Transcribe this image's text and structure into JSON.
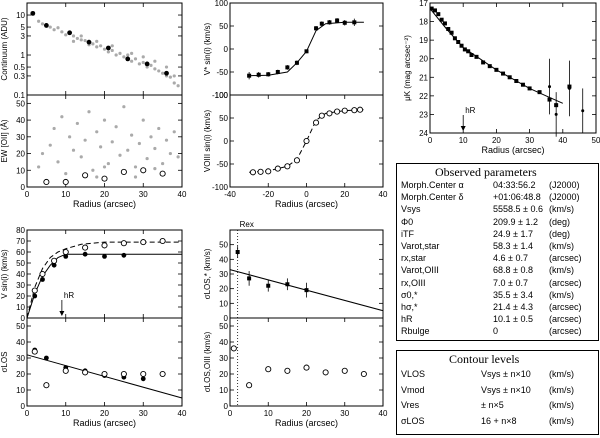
{
  "chart_data": [
    {
      "id": "continuum",
      "type": "scatter",
      "ylabel": "Continuum (ADU)",
      "yscale": "log",
      "xlim": [
        0,
        40
      ],
      "ylim": [
        0.1,
        20
      ],
      "xticks": [
        0,
        10,
        20,
        30,
        40
      ],
      "yticks": [
        {
          "v": 0.1,
          "label": "0.1"
        },
        {
          "v": 0.3,
          "label": "0.3"
        },
        {
          "v": 0.5,
          "label": "0.5"
        },
        {
          "v": 1,
          "label": "1"
        },
        {
          "v": 3,
          "label": "3"
        },
        {
          "v": 5,
          "label": "5"
        },
        {
          "v": 10,
          "label": "10"
        }
      ],
      "points_black": [
        [
          1.5,
          11
        ],
        [
          5,
          5.5
        ],
        [
          11,
          3.6
        ],
        [
          16,
          2.1
        ],
        [
          21,
          1.5
        ],
        [
          26,
          0.8
        ],
        [
          31,
          0.6
        ],
        [
          36,
          0.35
        ]
      ],
      "scatter_grey": [
        [
          3,
          7
        ],
        [
          4,
          6
        ],
        [
          6,
          5
        ],
        [
          7,
          4.3
        ],
        [
          8,
          4.8
        ],
        [
          9,
          3.8
        ],
        [
          10,
          3.2
        ],
        [
          12,
          3
        ],
        [
          13,
          2.6
        ],
        [
          14,
          2.4
        ],
        [
          15,
          2.3
        ],
        [
          16,
          1.8
        ],
        [
          17,
          1.9
        ],
        [
          18,
          1.6
        ],
        [
          19,
          1.7
        ],
        [
          20,
          1.4
        ],
        [
          21,
          1.2
        ],
        [
          22,
          1.3
        ],
        [
          23,
          1.0
        ],
        [
          24,
          1.1
        ],
        [
          25,
          0.9
        ],
        [
          26,
          1.0
        ],
        [
          27,
          0.7
        ],
        [
          28,
          0.8
        ],
        [
          29,
          0.6
        ],
        [
          30,
          0.65
        ],
        [
          31,
          0.5
        ],
        [
          32,
          0.55
        ],
        [
          33,
          0.45
        ],
        [
          34,
          0.4
        ],
        [
          35,
          0.35
        ],
        [
          36,
          0.3
        ],
        [
          37,
          0.28
        ],
        [
          38,
          0.2
        ],
        [
          39,
          0.17
        ],
        [
          12,
          2.2
        ],
        [
          14,
          3
        ],
        [
          18,
          2.2
        ],
        [
          22,
          1.7
        ],
        [
          27,
          1.1
        ],
        [
          30,
          0.9
        ],
        [
          33,
          0.7
        ],
        [
          36,
          0.5
        ],
        [
          38,
          0.3
        ]
      ]
    },
    {
      "id": "ew",
      "type": "scatter",
      "xlabel": "Radius (arcsec)",
      "ylabel": "EW [OII] (Å)",
      "xlim": [
        0,
        40
      ],
      "ylim": [
        0,
        55
      ],
      "xticks": [
        0,
        10,
        20,
        30,
        40
      ],
      "yticks": [
        0,
        10,
        20,
        30,
        40,
        50
      ],
      "points_open": [
        [
          5,
          3
        ],
        [
          10,
          3
        ],
        [
          15,
          7
        ],
        [
          20,
          5
        ],
        [
          25,
          9
        ],
        [
          30,
          10
        ],
        [
          35,
          8
        ]
      ],
      "scatter_grey": [
        [
          3,
          12
        ],
        [
          4,
          20
        ],
        [
          6,
          25
        ],
        [
          7,
          35
        ],
        [
          8,
          15
        ],
        [
          9,
          42
        ],
        [
          11,
          30
        ],
        [
          12,
          22
        ],
        [
          13,
          38
        ],
        [
          14,
          18
        ],
        [
          15,
          28
        ],
        [
          16,
          45
        ],
        [
          17,
          10
        ],
        [
          18,
          33
        ],
        [
          19,
          24
        ],
        [
          20,
          40
        ],
        [
          21,
          14
        ],
        [
          22,
          27
        ],
        [
          23,
          36
        ],
        [
          24,
          19
        ],
        [
          25,
          48
        ],
        [
          26,
          22
        ],
        [
          27,
          31
        ],
        [
          28,
          12
        ],
        [
          29,
          26
        ],
        [
          30,
          40
        ],
        [
          31,
          17
        ],
        [
          32,
          30
        ],
        [
          33,
          23
        ],
        [
          34,
          35
        ],
        [
          35,
          14
        ],
        [
          36,
          28
        ],
        [
          37,
          20
        ],
        [
          38,
          33
        ],
        [
          39,
          18
        ],
        [
          10,
          8
        ],
        [
          20,
          12
        ],
        [
          28,
          6
        ],
        [
          33,
          11
        ],
        [
          18,
          6
        ]
      ]
    },
    {
      "id": "vstar",
      "type": "scatter",
      "ylabel": "V* sin(i) (km/s)",
      "xlim": [
        -40,
        40
      ],
      "ylim": [
        -100,
        100
      ],
      "yticks": [
        -100,
        -50,
        0,
        50,
        100
      ],
      "model_line": [
        [
          -30,
          -58
        ],
        [
          -20,
          -57
        ],
        [
          -10,
          -50
        ],
        [
          -5,
          -30
        ],
        [
          0,
          -5
        ],
        [
          5,
          40
        ],
        [
          10,
          55
        ],
        [
          20,
          58
        ],
        [
          30,
          58
        ]
      ],
      "points": [
        [
          -30,
          -58,
          8
        ],
        [
          -25,
          -56,
          6
        ],
        [
          -20,
          -55,
          5
        ],
        [
          -15,
          -50,
          5
        ],
        [
          -10,
          -40,
          5
        ],
        [
          -5,
          -30,
          5
        ],
        [
          0,
          -5,
          4
        ],
        [
          5,
          45,
          5
        ],
        [
          8,
          55,
          5
        ],
        [
          12,
          58,
          5
        ],
        [
          16,
          62,
          5
        ],
        [
          20,
          57,
          6
        ],
        [
          25,
          58,
          8
        ]
      ]
    },
    {
      "id": "voiii",
      "type": "scatter",
      "xlabel": "Radius (arcsec)",
      "ylabel": "VOIII sin(i) (km/s)",
      "xlim": [
        -40,
        40
      ],
      "ylim": [
        -100,
        100
      ],
      "xticks": [
        -40,
        -20,
        0,
        20,
        40
      ],
      "yticks": [
        -100,
        -50,
        0,
        50,
        100
      ],
      "model_line": [
        [
          -30,
          -68
        ],
        [
          -20,
          -65
        ],
        [
          -10,
          -55
        ],
        [
          -5,
          -40
        ],
        [
          0,
          0
        ],
        [
          5,
          45
        ],
        [
          10,
          60
        ],
        [
          20,
          66
        ],
        [
          30,
          68
        ]
      ],
      "points_open": [
        [
          -28,
          -68
        ],
        [
          -24,
          -67
        ],
        [
          -20,
          -66
        ],
        [
          -15,
          -60
        ],
        [
          -10,
          -55
        ],
        [
          -5,
          -42
        ],
        [
          0,
          0
        ],
        [
          5,
          40
        ],
        [
          8,
          55
        ],
        [
          12,
          60
        ],
        [
          16,
          64
        ],
        [
          20,
          66
        ],
        [
          25,
          67
        ],
        [
          28,
          68
        ]
      ]
    },
    {
      "id": "mu",
      "type": "line",
      "xlabel": "Radius (arcsec)",
      "ylabel": "μK (mag arcsec⁻²)",
      "xlim": [
        0,
        50
      ],
      "ylim": [
        24,
        17
      ],
      "xticks": [
        0,
        10,
        20,
        30,
        40,
        50
      ],
      "yticks": [
        17,
        18,
        19,
        20,
        21,
        22,
        23,
        24
      ],
      "annotation": "hR",
      "annotation_x": 10,
      "model_line": [
        [
          0,
          17.3
        ],
        [
          5,
          18.4
        ],
        [
          10,
          19.4
        ],
        [
          15,
          20.0
        ],
        [
          20,
          20.6
        ],
        [
          25,
          21.1
        ],
        [
          30,
          21.6
        ],
        [
          35,
          22.0
        ],
        [
          40,
          22.4
        ]
      ],
      "points": [
        [
          0.5,
          17.3
        ],
        [
          1.5,
          17.4
        ],
        [
          2.5,
          17.6
        ],
        [
          3.5,
          17.9
        ],
        [
          4.5,
          18.1
        ],
        [
          5.5,
          18.4
        ],
        [
          6.5,
          18.6
        ],
        [
          7.5,
          18.9
        ],
        [
          8.5,
          19.1
        ],
        [
          9.5,
          19.3
        ],
        [
          10.5,
          19.5
        ],
        [
          11.5,
          19.6
        ],
        [
          12.5,
          19.8
        ],
        [
          14,
          19.9
        ],
        [
          16,
          20.2
        ],
        [
          18,
          20.4
        ],
        [
          20,
          20.6
        ],
        [
          22,
          20.8
        ],
        [
          24,
          21.0
        ],
        [
          26,
          21.2
        ],
        [
          28,
          21.4
        ],
        [
          30,
          21.6
        ],
        [
          33,
          21.8
        ],
        [
          36,
          22.2
        ],
        [
          38,
          22.5
        ],
        [
          42,
          21.5
        ]
      ],
      "err_points": [
        [
          36,
          21.5,
          1.5
        ],
        [
          38,
          23,
          1.2
        ],
        [
          42,
          21.6,
          1.5
        ],
        [
          46,
          22.8,
          1.2
        ]
      ]
    },
    {
      "id": "vrot",
      "type": "scatter",
      "ylabel": "V sin(i) (km/s)",
      "xlim": [
        0,
        40
      ],
      "ylim": [
        0,
        80
      ],
      "xticks": [
        0,
        10,
        20,
        30,
        40
      ],
      "yticks": [
        0,
        10,
        20,
        30,
        40,
        50,
        60,
        70,
        80
      ],
      "annotation": "hR",
      "annotation_x": 9,
      "model_solid": [
        [
          0,
          0
        ],
        [
          2,
          22
        ],
        [
          4,
          38
        ],
        [
          6,
          48
        ],
        [
          8,
          55
        ],
        [
          10,
          58
        ],
        [
          40,
          58
        ]
      ],
      "model_dashed": [
        [
          0,
          0
        ],
        [
          2,
          28
        ],
        [
          4,
          45
        ],
        [
          6,
          55
        ],
        [
          8,
          60
        ],
        [
          10,
          63
        ],
        [
          14,
          67
        ],
        [
          20,
          69
        ],
        [
          40,
          69
        ]
      ],
      "points_black": [
        [
          2,
          20
        ],
        [
          4,
          35
        ],
        [
          7,
          48
        ],
        [
          10,
          56
        ],
        [
          15,
          58
        ],
        [
          20,
          56
        ],
        [
          25,
          57
        ]
      ],
      "points_open": [
        [
          2,
          25
        ],
        [
          4,
          40
        ],
        [
          7,
          52
        ],
        [
          10,
          60
        ],
        [
          15,
          64
        ],
        [
          20,
          66
        ],
        [
          25,
          68
        ],
        [
          30,
          69
        ],
        [
          35,
          70
        ]
      ]
    },
    {
      "id": "sigma",
      "type": "scatter",
      "xlabel": "Radius (arcsec)",
      "ylabel": "σLOS",
      "xlim": [
        0,
        40
      ],
      "ylim": [
        0,
        55
      ],
      "xticks": [
        0,
        10,
        20,
        30,
        40
      ],
      "yticks": [
        0,
        10,
        20,
        30,
        40,
        50
      ],
      "model_line": [
        [
          0,
          32
        ],
        [
          40,
          5
        ]
      ],
      "points_black": [
        [
          2,
          35
        ],
        [
          5,
          30
        ],
        [
          10,
          24
        ],
        [
          15,
          22
        ],
        [
          20,
          19
        ],
        [
          25,
          18
        ],
        [
          30,
          17
        ]
      ],
      "points_open": [
        [
          2,
          34
        ],
        [
          5,
          13
        ],
        [
          10,
          22
        ],
        [
          15,
          21
        ],
        [
          20,
          20
        ],
        [
          25,
          20
        ],
        [
          30,
          20
        ],
        [
          35,
          20
        ]
      ]
    },
    {
      "id": "sigma_star",
      "type": "scatter",
      "ylabel": "σLOS,* (km/s)",
      "annotation": "Rex",
      "xlim": [
        0,
        40
      ],
      "ylim": [
        0,
        60
      ],
      "yticks": [
        0,
        10,
        20,
        30,
        40,
        50
      ],
      "model_line": [
        [
          0,
          33
        ],
        [
          40,
          5
        ]
      ],
      "points": [
        [
          2,
          45,
          4
        ],
        [
          5,
          27,
          5
        ],
        [
          10,
          22,
          4
        ],
        [
          15,
          23,
          4
        ],
        [
          20,
          19,
          5
        ]
      ]
    },
    {
      "id": "sigma_oiii",
      "type": "scatter",
      "xlabel": "Radius (arcsec)",
      "ylabel": "σLOS,OIII (km/s)",
      "xlim": [
        0,
        40
      ],
      "ylim": [
        0,
        55
      ],
      "xticks": [
        0,
        10,
        20,
        30,
        40
      ],
      "yticks": [
        0,
        10,
        20,
        30,
        40,
        50
      ],
      "points_open": [
        [
          1,
          36
        ],
        [
          5,
          13
        ],
        [
          10,
          23
        ],
        [
          15,
          22
        ],
        [
          20,
          24
        ],
        [
          25,
          21
        ],
        [
          30,
          22
        ],
        [
          35,
          20
        ]
      ]
    }
  ],
  "tables": {
    "observed": {
      "title": "Observed parameters",
      "rows": [
        {
          "name": "Morph.Center α",
          "value": "04:33:56.2",
          "unit": "(J2000)"
        },
        {
          "name": "Morph.Center δ",
          "value": "+01:06:48.8",
          "unit": "(J2000)"
        },
        {
          "name": "Vsys",
          "value": "5558.5 ± 0.6",
          "unit": "(km/s)"
        },
        {
          "name": "Φ0",
          "value": "209.9 ± 1.2",
          "unit": "(deg)"
        },
        {
          "name": "iTF",
          "value": "24.9 ± 1.7",
          "unit": "(deg)"
        },
        {
          "name": "Varot,star",
          "value": "58.3 ± 1.4",
          "unit": "(km/s)"
        },
        {
          "name": "rx,star",
          "value": "4.6 ± 0.7",
          "unit": "(arcsec)"
        },
        {
          "name": "Varot,OIII",
          "value": "68.8 ± 0.8",
          "unit": "(km/s)"
        },
        {
          "name": "rx,OIII",
          "value": "7.0 ± 0.7",
          "unit": "(arcsec)"
        },
        {
          "name": "σ0,*",
          "value": "35.5 ± 3.4",
          "unit": "(km/s)"
        },
        {
          "name": "hσ,*",
          "value": "21.4 ± 4.3",
          "unit": "(arcsec)"
        },
        {
          "name": "hR",
          "value": "10.1 ± 0.5",
          "unit": "(arcsec)"
        },
        {
          "name": "Rbulge",
          "value": "0",
          "unit": "(arcsec)"
        }
      ]
    },
    "contour": {
      "title": "Contour levels",
      "rows": [
        {
          "name": "VLOS",
          "value": "Vsys ± n×10",
          "unit": "(km/s)"
        },
        {
          "name": "Vmod",
          "value": "Vsys ± n×10",
          "unit": "(km/s)"
        },
        {
          "name": "Vres",
          "value": "± n×5",
          "unit": "(km/s)"
        },
        {
          "name": "σLOS",
          "value": "16 + n×8",
          "unit": "(km/s)"
        }
      ]
    }
  }
}
